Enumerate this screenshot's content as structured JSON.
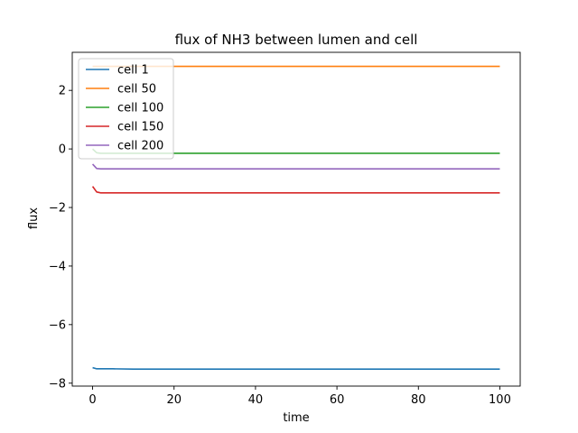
{
  "chart_data": {
    "type": "line",
    "title": "flux of NH3 between lumen and cell",
    "xlabel": "time",
    "ylabel": "flux",
    "xlim": [
      -5,
      105
    ],
    "ylim": [
      -8.1,
      3.3
    ],
    "xticks": [
      0,
      20,
      40,
      60,
      80,
      100
    ],
    "yticks": [
      -8,
      -6,
      -4,
      -2,
      0,
      2
    ],
    "grid": false,
    "legend_position": "upper left",
    "series": [
      {
        "name": "cell 1",
        "color": "#1f77b4",
        "x": [
          0,
          1,
          2,
          5,
          10,
          20,
          50,
          100
        ],
        "y": [
          -7.47,
          -7.51,
          -7.51,
          -7.51,
          -7.52,
          -7.52,
          -7.52,
          -7.52
        ]
      },
      {
        "name": "cell 50",
        "color": "#ff7f0e",
        "x": [
          0,
          1,
          2,
          5,
          10,
          20,
          50,
          100
        ],
        "y": [
          2.82,
          2.82,
          2.82,
          2.82,
          2.82,
          2.82,
          2.82,
          2.82
        ]
      },
      {
        "name": "cell 100",
        "color": "#2ca02c",
        "x": [
          0,
          1,
          2,
          5,
          10,
          20,
          50,
          100
        ],
        "y": [
          0.0,
          -0.13,
          -0.15,
          -0.15,
          -0.15,
          -0.15,
          -0.15,
          -0.15
        ]
      },
      {
        "name": "cell 150",
        "color": "#d62728",
        "x": [
          0,
          1,
          2,
          5,
          10,
          20,
          50,
          100
        ],
        "y": [
          -1.28,
          -1.47,
          -1.5,
          -1.5,
          -1.5,
          -1.5,
          -1.5,
          -1.5
        ]
      },
      {
        "name": "cell 200",
        "color": "#9467bd",
        "x": [
          0,
          1,
          2,
          5,
          10,
          20,
          50,
          100
        ],
        "y": [
          -0.52,
          -0.67,
          -0.68,
          -0.68,
          -0.68,
          -0.68,
          -0.68,
          -0.68
        ]
      }
    ]
  }
}
